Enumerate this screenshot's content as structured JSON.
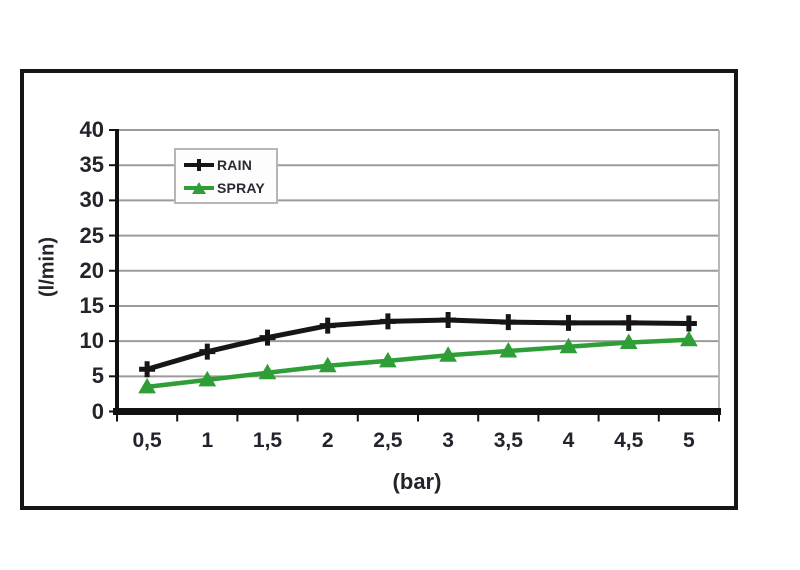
{
  "chart_data": {
    "type": "line",
    "title": "",
    "xlabel": "(bar)",
    "ylabel": "(l/min)",
    "categories": [
      "0,5",
      "1",
      "1,5",
      "2",
      "2,5",
      "3",
      "3,5",
      "4",
      "4,5",
      "5"
    ],
    "x_values": [
      0.5,
      1,
      1.5,
      2,
      2.5,
      3,
      3.5,
      4,
      4.5,
      5
    ],
    "ylim": [
      0,
      40
    ],
    "y_ticks": [
      0,
      5,
      10,
      15,
      20,
      25,
      30,
      35,
      40
    ],
    "grid": "horizontal",
    "legend_position": "top-left-inside",
    "series": [
      {
        "name": "RAIN",
        "color": "#161616",
        "marker": "plus",
        "values": [
          6,
          8.5,
          10.5,
          12.2,
          12.8,
          13,
          12.7,
          12.6,
          12.6,
          12.5
        ]
      },
      {
        "name": "SPRAY",
        "color": "#2f9e38",
        "marker": "triangle-up",
        "values": [
          3.5,
          4.5,
          5.5,
          6.5,
          7.2,
          8,
          8.6,
          9.2,
          9.8,
          10.2
        ]
      }
    ]
  },
  "colors": {
    "background": "#ffffff",
    "frame_border": "#161616",
    "gridline": "#9b9b9b",
    "plot_right_border": "#b8b8b8",
    "axis": "#111111",
    "text": "#23232b",
    "legend_border": "#b6b6b6"
  }
}
